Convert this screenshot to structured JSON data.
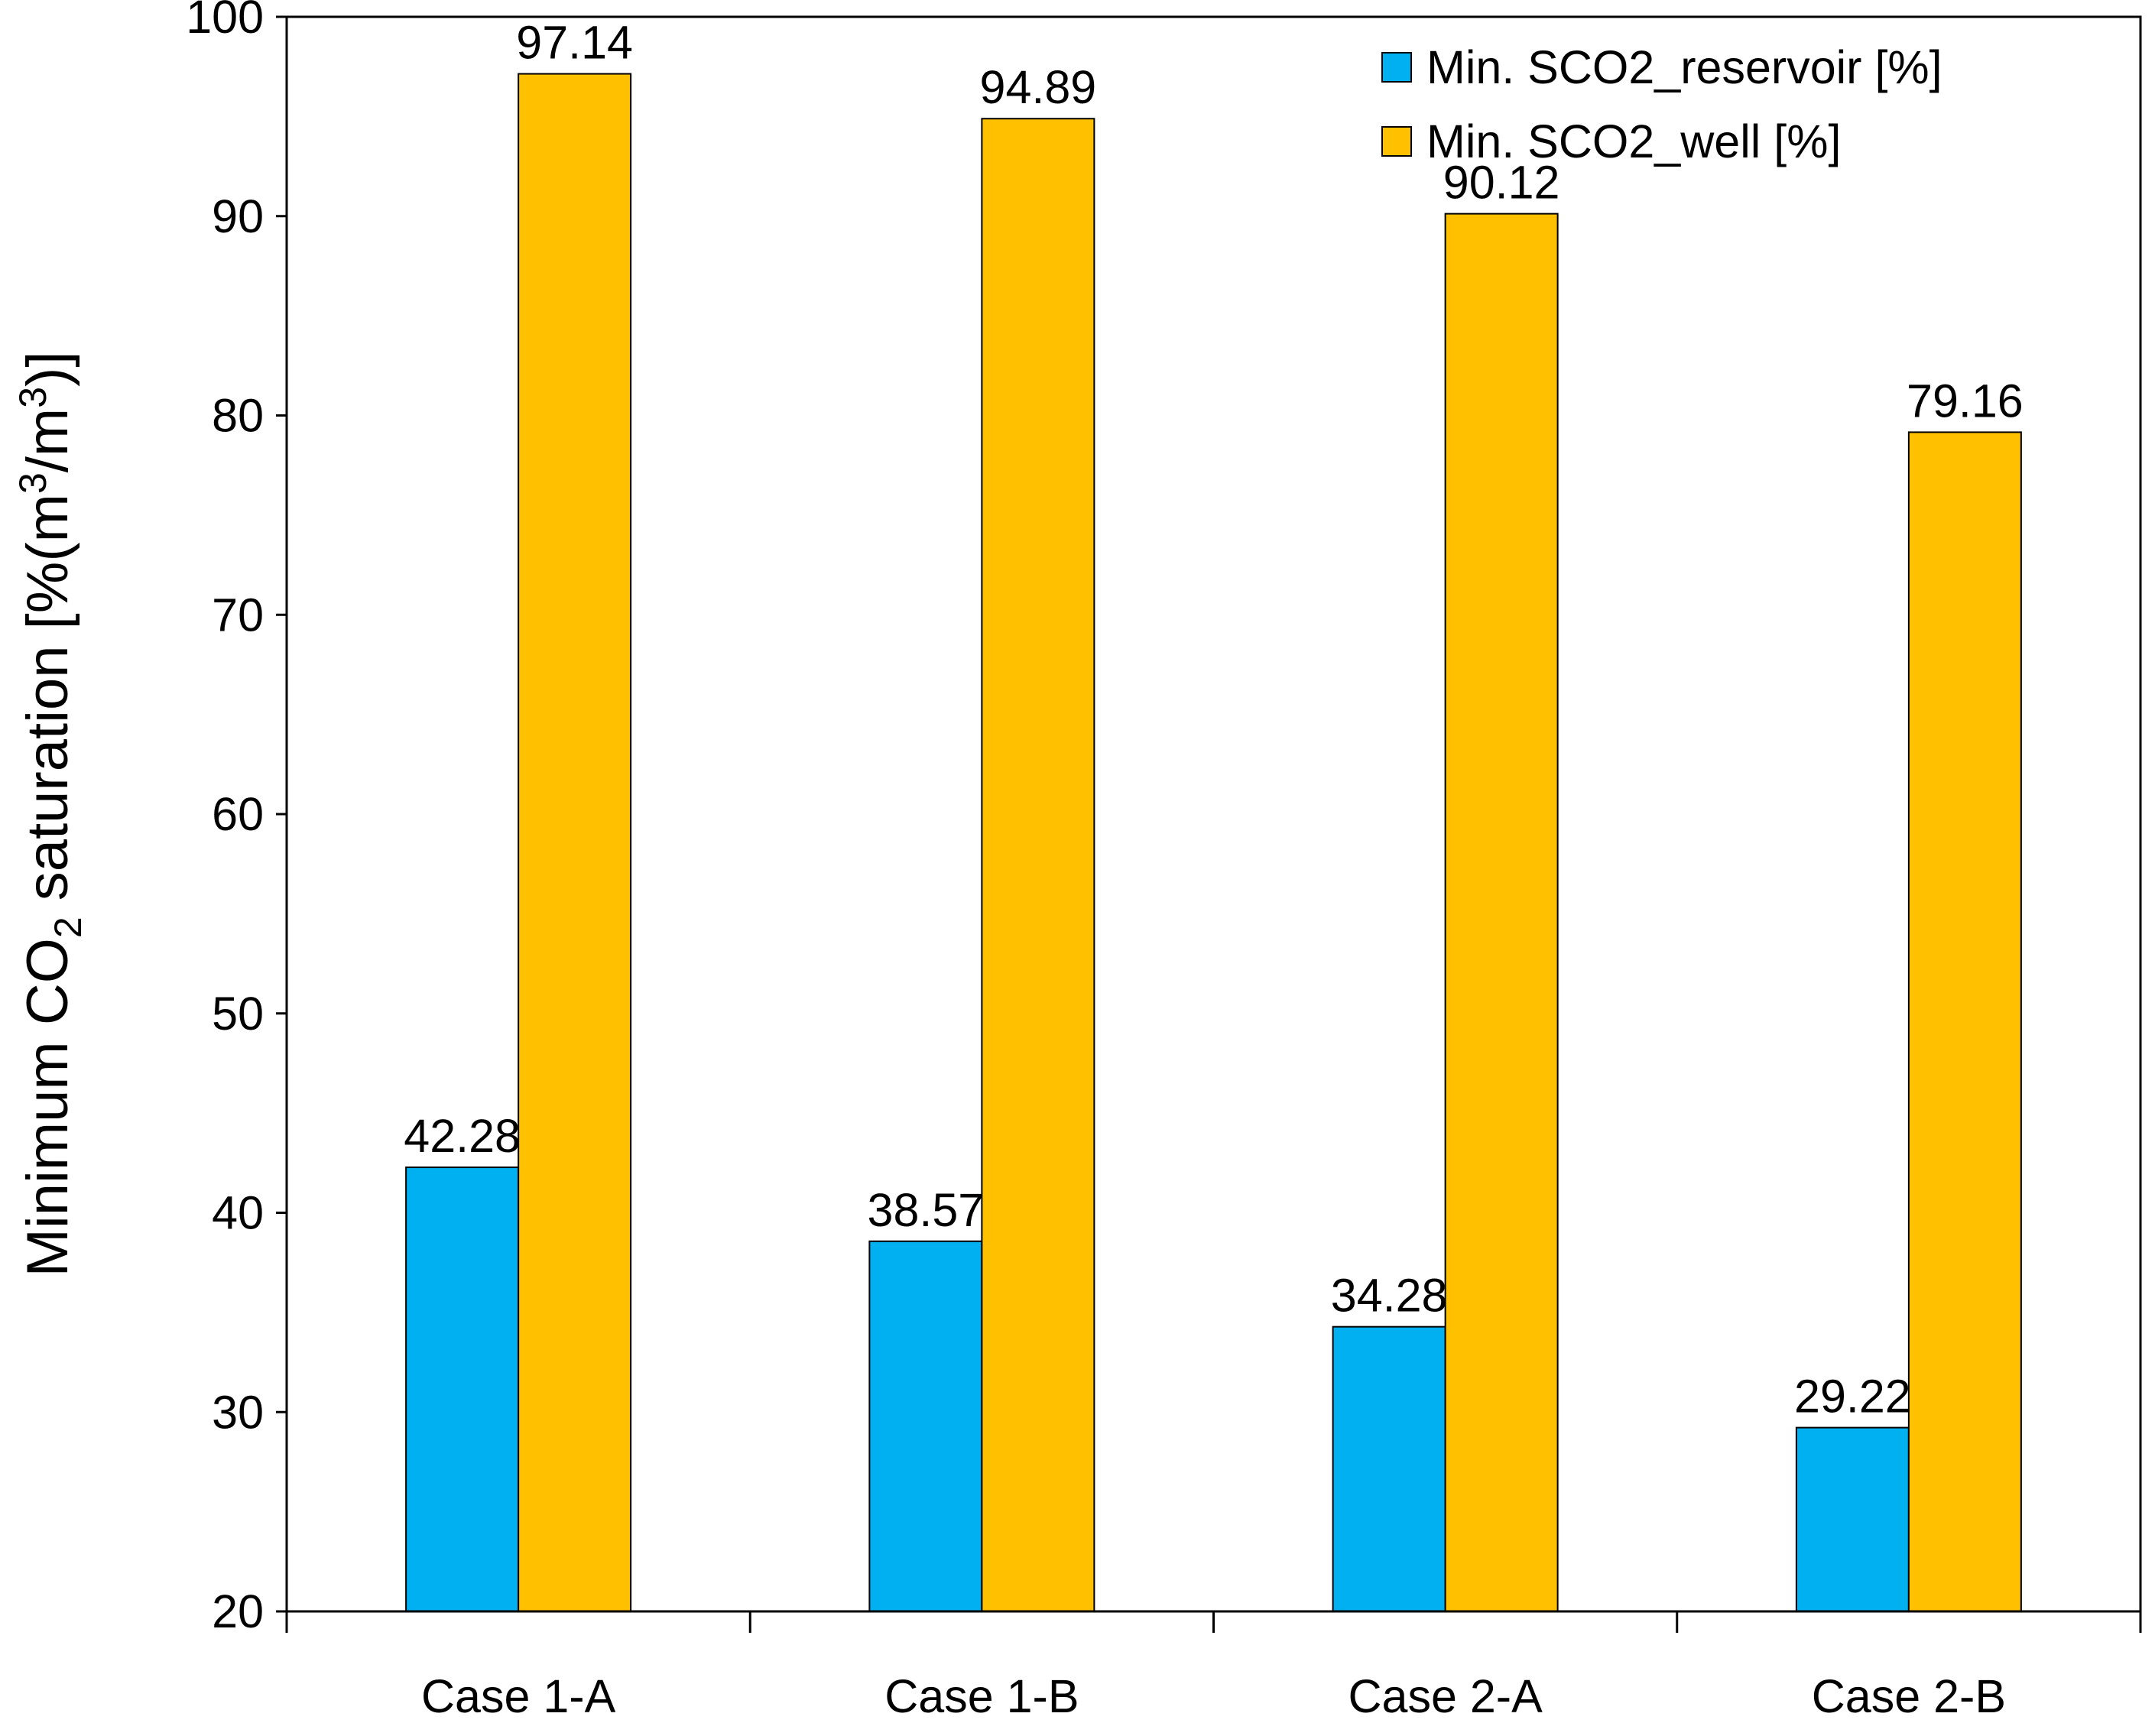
{
  "chart_data": {
    "type": "bar",
    "title": "",
    "xlabel": "",
    "ylabel": {
      "prefix": "Minimum CO",
      "sub": "2",
      "middle": " saturation [%(m",
      "sup1": "3",
      "slash": "/m",
      "sup2": "3",
      "suffix": ")]"
    },
    "ylim": [
      20,
      100
    ],
    "yticks": [
      "20",
      "30",
      "40",
      "50",
      "60",
      "70",
      "80",
      "90",
      "100"
    ],
    "categories": [
      "Case 1-A",
      "Case 1-B",
      "Case 2-A",
      "Case 2-B"
    ],
    "series": [
      {
        "name": "Min. SCO2_reservoir [%]",
        "color": "#00B0F0",
        "values": [
          42.28,
          38.57,
          34.28,
          29.22
        ],
        "labels": [
          "42.28",
          "38.57",
          "34.28",
          "29.22"
        ]
      },
      {
        "name": "Min. SCO2_well [%]",
        "color": "#FFC000",
        "values": [
          97.14,
          94.89,
          90.12,
          79.16
        ],
        "labels": [
          "97.14",
          "94.89",
          "90.12",
          "79.16"
        ]
      }
    ],
    "legend_position": "top-right",
    "grid": false
  }
}
